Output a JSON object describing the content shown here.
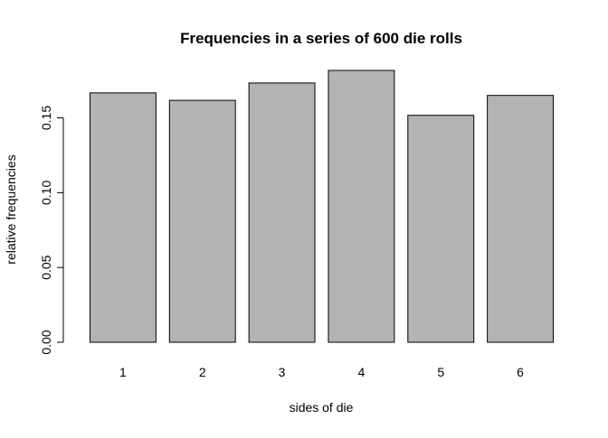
{
  "chart_data": {
    "type": "bar",
    "title": "Frequencies in a series of 600 die rolls",
    "xlabel": "sides of die",
    "ylabel": "relative frequencies",
    "categories": [
      "1",
      "2",
      "3",
      "4",
      "5",
      "6"
    ],
    "values": [
      0.1667,
      0.1617,
      0.1733,
      0.1817,
      0.1517,
      0.165
    ],
    "ylim": [
      0,
      0.1817
    ],
    "yticks": [
      0,
      0.05,
      0.1,
      0.15
    ],
    "ytick_labels": [
      "0.00",
      "0.05",
      "0.10",
      "0.15"
    ],
    "grid": false,
    "legend": "none",
    "bar_fill": "#b3b3b3",
    "bar_stroke": "#000000"
  }
}
